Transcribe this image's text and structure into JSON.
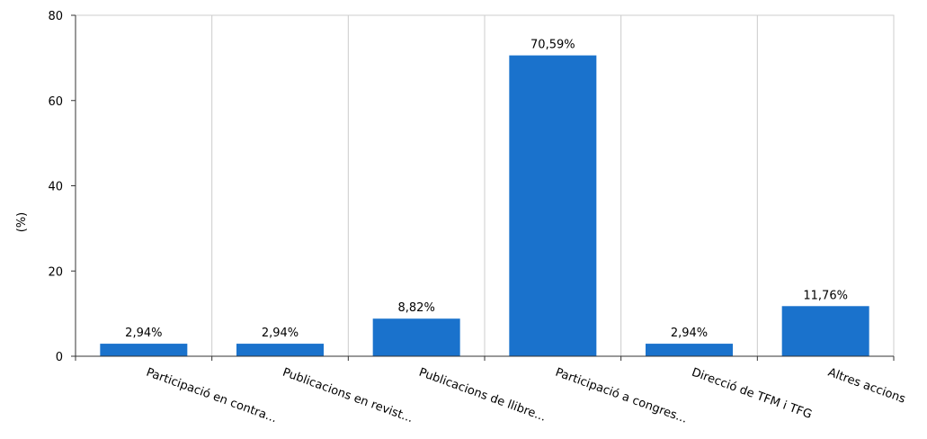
{
  "chart_data": {
    "type": "bar",
    "categories": [
      "Participació en contra...",
      "Publicacions en revist...",
      "Publicacions de llibre...",
      "Participació a congres...",
      "Direcció de TFM i TFG",
      "Altres accions"
    ],
    "values": [
      2.94,
      2.94,
      8.82,
      70.59,
      2.94,
      11.76
    ],
    "data_labels": [
      "2,94%",
      "2,94%",
      "8,82%",
      "70,59%",
      "2,94%",
      "11,76%"
    ],
    "ylabel": "(%)",
    "ylim": [
      0,
      80
    ],
    "yticks": [
      0,
      20,
      40,
      60,
      80
    ],
    "grid": "vertical",
    "bar_color": "#1a72cc"
  }
}
